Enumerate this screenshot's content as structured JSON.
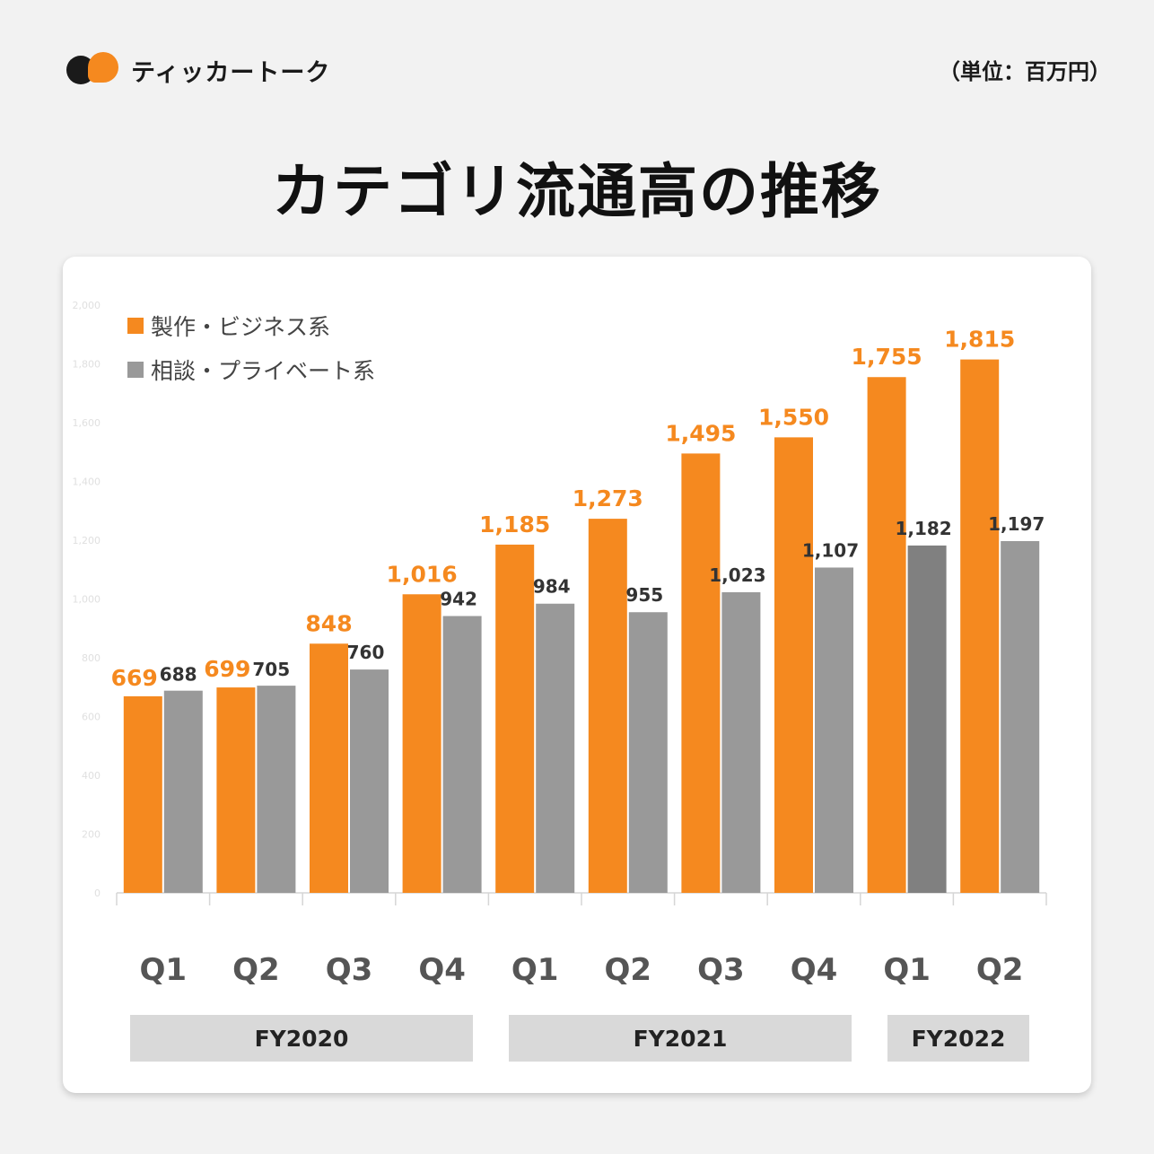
{
  "header": {
    "brand": "ティッカートーク",
    "unit": "（単位：百万円）",
    "title": "カテゴリ流通高の推移"
  },
  "colors": {
    "orange": "#f5891f",
    "gray": "#999999",
    "gray_dark": "#808080",
    "axis": "#d6d6d6",
    "tick_text": "#e0e0e0"
  },
  "chart_data": {
    "type": "bar",
    "title": "カテゴリ流通高の推移",
    "ylabel": "単位：百万円",
    "ylim": [
      0,
      2000
    ],
    "yticks": [
      "0",
      "200",
      "400",
      "600",
      "800",
      "1,000",
      "1,200",
      "1,400",
      "1,600",
      "1,800",
      "2,000"
    ],
    "yticks_values": [
      0,
      200,
      400,
      600,
      800,
      1000,
      1200,
      1400,
      1600,
      1800,
      2000
    ],
    "categories": [
      "Q1",
      "Q2",
      "Q3",
      "Q4",
      "Q1",
      "Q2",
      "Q3",
      "Q4",
      "Q1",
      "Q2"
    ],
    "series": [
      {
        "name": "製作・ビジネス系",
        "values": [
          669,
          699,
          848,
          1016,
          1185,
          1273,
          1495,
          1550,
          1755,
          1815
        ],
        "labels": [
          "669",
          "699",
          "848",
          "1,016",
          "1,185",
          "1,273",
          "1,495",
          "1,550",
          "1,755",
          "1,815"
        ]
      },
      {
        "name": "相談・プライベート系",
        "values": [
          688,
          705,
          760,
          942,
          984,
          955,
          1023,
          1107,
          1182,
          1197
        ],
        "labels": [
          "688",
          "705",
          "760",
          "942",
          "984",
          "955",
          "1,023",
          "1,107",
          "1,182",
          "1,197"
        ],
        "highlight_index": 8
      }
    ],
    "groups": [
      {
        "label": "FY2020",
        "count": 4
      },
      {
        "label": "FY2021",
        "count": 4
      },
      {
        "label": "FY2022",
        "count": 2
      }
    ],
    "legend_position": "top-left"
  }
}
